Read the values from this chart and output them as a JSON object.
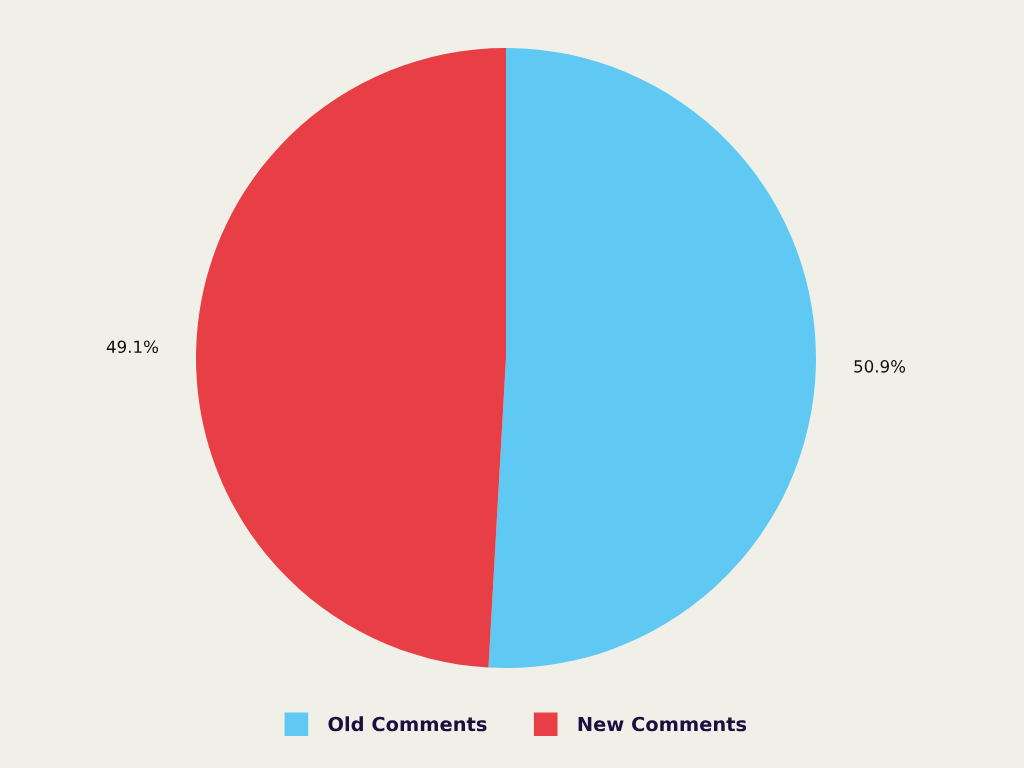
{
  "chart_data": {
    "type": "pie",
    "categories": [
      "Old Comments",
      "New Comments"
    ],
    "values": [
      50.9,
      49.1
    ],
    "colors": [
      "#5fc9f3",
      "#e83e45"
    ],
    "value_labels": [
      "50.9%",
      "49.1%"
    ],
    "legend": "bottom"
  }
}
